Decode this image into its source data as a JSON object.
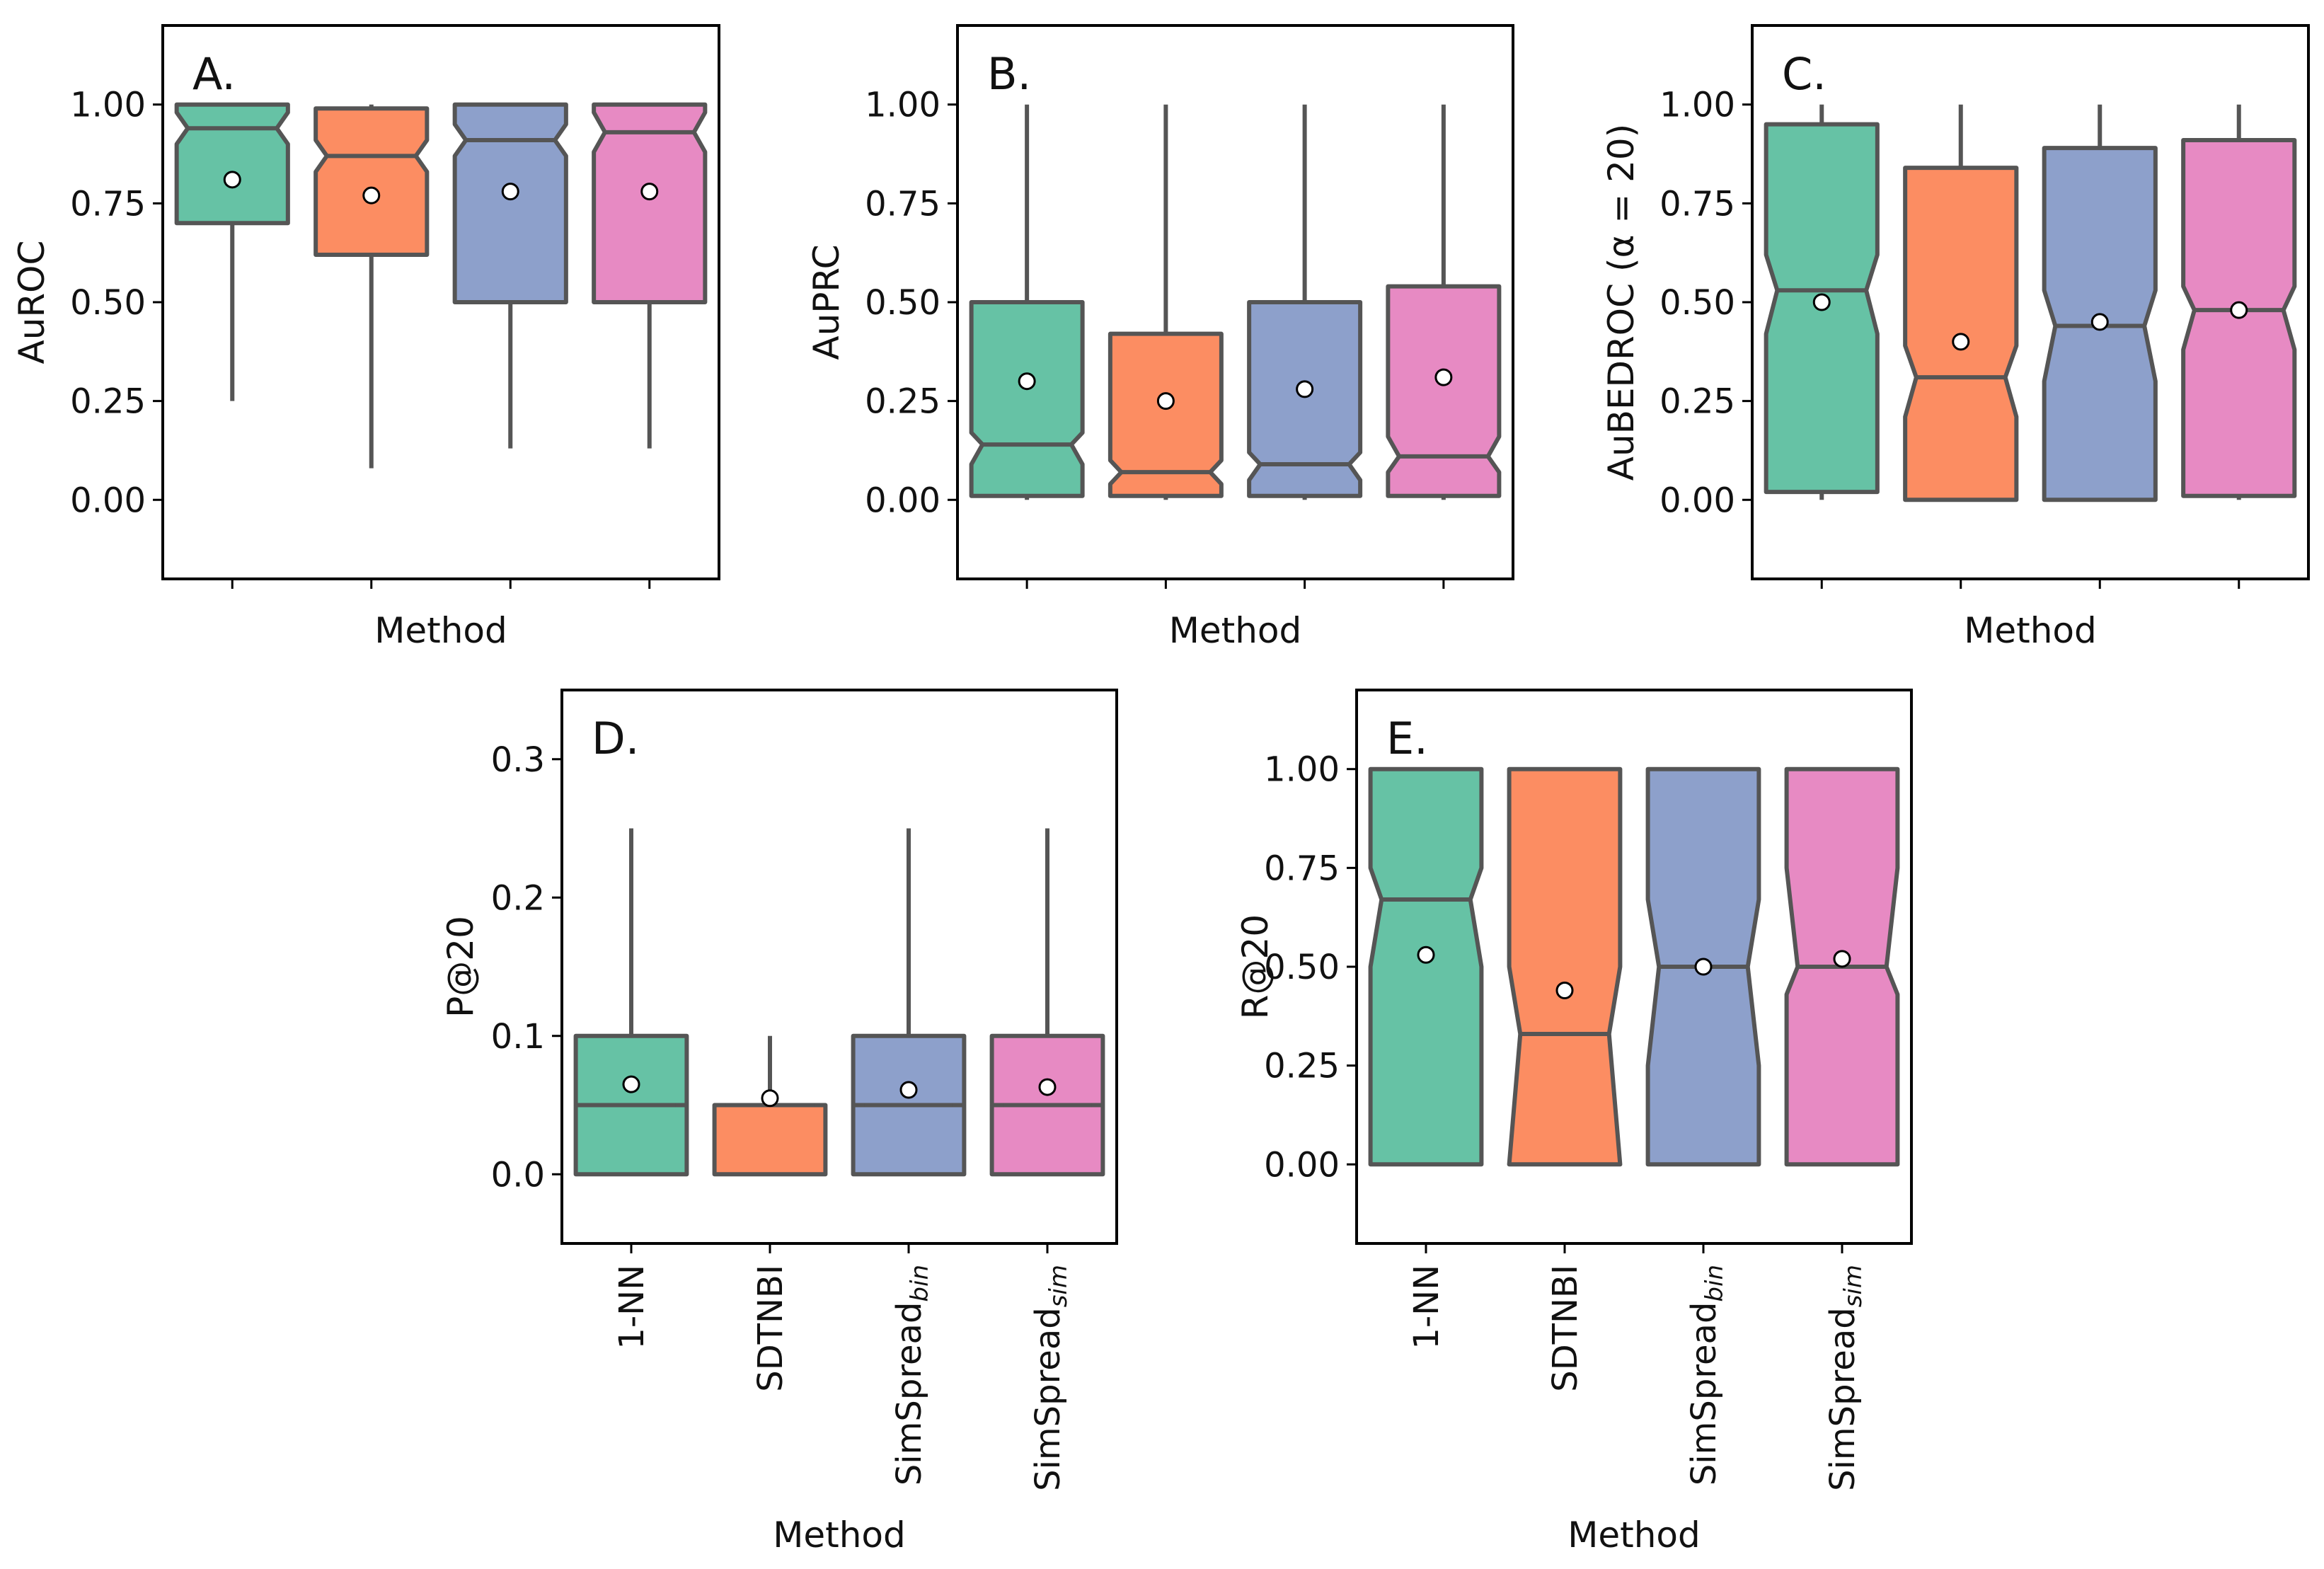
{
  "chart_data": [
    {
      "panel": "A.",
      "type": "boxplot",
      "title": "",
      "xlabel": "Method",
      "ylabel": "AuROC",
      "ylim": [
        -0.2,
        1.2
      ],
      "yticks": [
        0.0,
        0.25,
        0.5,
        0.75,
        1.0
      ],
      "ytick_labels": [
        "0.00",
        "0.25",
        "0.50",
        "0.75",
        "1.00"
      ],
      "show_category_labels": false,
      "categories": [
        "1-NN",
        "SDTNBI",
        "SimSpread_bin",
        "SimSpread_sim"
      ],
      "series": [
        {
          "name": "1-NN",
          "color": "#66c2a5",
          "whislo": 0.25,
          "q1": 0.7,
          "median": 0.94,
          "q3": 1.0,
          "whishi": 1.0,
          "notch_lo": 0.9,
          "notch_hi": 0.98,
          "mean": 0.81
        },
        {
          "name": "SDTNBI",
          "color": "#fc8d62",
          "whislo": 0.08,
          "q1": 0.62,
          "median": 0.87,
          "q3": 0.99,
          "whishi": 1.0,
          "notch_lo": 0.83,
          "notch_hi": 0.91,
          "mean": 0.77
        },
        {
          "name": "SimSpread_bin",
          "color": "#8da0cb",
          "whislo": 0.13,
          "q1": 0.5,
          "median": 0.91,
          "q3": 1.0,
          "whishi": 1.0,
          "notch_lo": 0.87,
          "notch_hi": 0.95,
          "mean": 0.78
        },
        {
          "name": "SimSpread_sim",
          "color": "#e78ac3",
          "whislo": 0.13,
          "q1": 0.5,
          "median": 0.93,
          "q3": 1.0,
          "whishi": 1.0,
          "notch_lo": 0.88,
          "notch_hi": 0.98,
          "mean": 0.78
        }
      ]
    },
    {
      "panel": "B.",
      "type": "boxplot",
      "title": "",
      "xlabel": "Method",
      "ylabel": "AuPRC",
      "ylim": [
        -0.2,
        1.2
      ],
      "yticks": [
        0.0,
        0.25,
        0.5,
        0.75,
        1.0
      ],
      "ytick_labels": [
        "0.00",
        "0.25",
        "0.50",
        "0.75",
        "1.00"
      ],
      "show_category_labels": false,
      "categories": [
        "1-NN",
        "SDTNBI",
        "SimSpread_bin",
        "SimSpread_sim"
      ],
      "series": [
        {
          "name": "1-NN",
          "color": "#66c2a5",
          "whislo": 0.0,
          "q1": 0.01,
          "median": 0.14,
          "q3": 0.5,
          "whishi": 1.0,
          "notch_lo": 0.09,
          "notch_hi": 0.17,
          "mean": 0.3
        },
        {
          "name": "SDTNBI",
          "color": "#fc8d62",
          "whislo": 0.0,
          "q1": 0.01,
          "median": 0.07,
          "q3": 0.42,
          "whishi": 1.0,
          "notch_lo": 0.04,
          "notch_hi": 0.1,
          "mean": 0.25
        },
        {
          "name": "SimSpread_bin",
          "color": "#8da0cb",
          "whislo": 0.0,
          "q1": 0.01,
          "median": 0.09,
          "q3": 0.5,
          "whishi": 1.0,
          "notch_lo": 0.05,
          "notch_hi": 0.12,
          "mean": 0.28
        },
        {
          "name": "SimSpread_sim",
          "color": "#e78ac3",
          "whislo": 0.0,
          "q1": 0.01,
          "median": 0.11,
          "q3": 0.54,
          "whishi": 1.0,
          "notch_lo": 0.07,
          "notch_hi": 0.16,
          "mean": 0.31
        }
      ]
    },
    {
      "panel": "C.",
      "type": "boxplot",
      "title": "",
      "xlabel": "Method",
      "ylabel": "AuBEDROC (α = 20)",
      "ylim": [
        -0.2,
        1.2
      ],
      "yticks": [
        0.0,
        0.25,
        0.5,
        0.75,
        1.0
      ],
      "ytick_labels": [
        "0.00",
        "0.25",
        "0.50",
        "0.75",
        "1.00"
      ],
      "show_category_labels": false,
      "categories": [
        "1-NN",
        "SDTNBI",
        "SimSpread_bin",
        "SimSpread_sim"
      ],
      "series": [
        {
          "name": "1-NN",
          "color": "#66c2a5",
          "whislo": 0.0,
          "q1": 0.02,
          "median": 0.53,
          "q3": 0.95,
          "whishi": 1.0,
          "notch_lo": 0.42,
          "notch_hi": 0.62,
          "mean": 0.5
        },
        {
          "name": "SDTNBI",
          "color": "#fc8d62",
          "whislo": 0.0,
          "q1": 0.0,
          "median": 0.31,
          "q3": 0.84,
          "whishi": 1.0,
          "notch_lo": 0.21,
          "notch_hi": 0.39,
          "mean": 0.4
        },
        {
          "name": "SimSpread_bin",
          "color": "#8da0cb",
          "whislo": 0.0,
          "q1": 0.0,
          "median": 0.44,
          "q3": 0.89,
          "whishi": 1.0,
          "notch_lo": 0.3,
          "notch_hi": 0.53,
          "mean": 0.45
        },
        {
          "name": "SimSpread_sim",
          "color": "#e78ac3",
          "whislo": 0.0,
          "q1": 0.01,
          "median": 0.48,
          "q3": 0.91,
          "whishi": 1.0,
          "notch_lo": 0.38,
          "notch_hi": 0.54,
          "mean": 0.48
        }
      ]
    },
    {
      "panel": "D.",
      "type": "boxplot",
      "title": "",
      "xlabel": "Method",
      "ylabel": "P@20",
      "ylim": [
        -0.05,
        0.35
      ],
      "yticks": [
        0.0,
        0.1,
        0.2,
        0.3
      ],
      "ytick_labels": [
        "0.0",
        "0.1",
        "0.2",
        "0.3"
      ],
      "show_category_labels": true,
      "categories": [
        "1-NN",
        "SDTNBI",
        "SimSpread_bin",
        "SimSpread_sim"
      ],
      "series": [
        {
          "name": "1-NN",
          "color": "#66c2a5",
          "whislo": 0.0,
          "q1": 0.0,
          "median": 0.05,
          "q3": 0.1,
          "whishi": 0.25,
          "notch_lo": 0.05,
          "notch_hi": 0.05,
          "mean": 0.065
        },
        {
          "name": "SDTNBI",
          "color": "#fc8d62",
          "whislo": 0.0,
          "q1": 0.0,
          "median": 0.05,
          "q3": 0.05,
          "whishi": 0.1,
          "notch_lo": 0.05,
          "notch_hi": 0.05,
          "mean": 0.055
        },
        {
          "name": "SimSpread_bin",
          "color": "#8da0cb",
          "whislo": 0.0,
          "q1": 0.0,
          "median": 0.05,
          "q3": 0.1,
          "whishi": 0.25,
          "notch_lo": 0.05,
          "notch_hi": 0.05,
          "mean": 0.061
        },
        {
          "name": "SimSpread_sim",
          "color": "#e78ac3",
          "whislo": 0.0,
          "q1": 0.0,
          "median": 0.05,
          "q3": 0.1,
          "whishi": 0.25,
          "notch_lo": 0.05,
          "notch_hi": 0.05,
          "mean": 0.063
        }
      ]
    },
    {
      "panel": "E.",
      "type": "boxplot",
      "title": "",
      "xlabel": "Method",
      "ylabel": "R@20",
      "ylim": [
        -0.2,
        1.2
      ],
      "yticks": [
        0.0,
        0.25,
        0.5,
        0.75,
        1.0
      ],
      "ytick_labels": [
        "0.00",
        "0.25",
        "0.50",
        "0.75",
        "1.00"
      ],
      "show_category_labels": true,
      "categories": [
        "1-NN",
        "SDTNBI",
        "SimSpread_bin",
        "SimSpread_sim"
      ],
      "series": [
        {
          "name": "1-NN",
          "color": "#66c2a5",
          "whislo": 0.0,
          "q1": 0.0,
          "median": 0.67,
          "q3": 1.0,
          "whishi": 1.0,
          "notch_lo": 0.5,
          "notch_hi": 0.75,
          "mean": 0.53
        },
        {
          "name": "SDTNBI",
          "color": "#fc8d62",
          "whislo": 0.0,
          "q1": 0.0,
          "median": 0.33,
          "q3": 1.0,
          "whishi": 1.0,
          "notch_lo": 0.0,
          "notch_hi": 0.5,
          "mean": 0.44
        },
        {
          "name": "SimSpread_bin",
          "color": "#8da0cb",
          "whislo": 0.0,
          "q1": 0.0,
          "median": 0.5,
          "q3": 1.0,
          "whishi": 1.0,
          "notch_lo": 0.25,
          "notch_hi": 0.67,
          "mean": 0.5
        },
        {
          "name": "SimSpread_sim",
          "color": "#e78ac3",
          "whislo": 0.0,
          "q1": 0.0,
          "median": 0.5,
          "q3": 1.0,
          "whishi": 1.0,
          "notch_lo": 0.43,
          "notch_hi": 0.75,
          "mean": 0.52
        }
      ]
    }
  ],
  "category_display": [
    {
      "base": "1-NN",
      "sub": ""
    },
    {
      "base": "SDTNBI",
      "sub": ""
    },
    {
      "base": "SimSpread",
      "sub": "bin"
    },
    {
      "base": "SimSpread",
      "sub": "sim"
    }
  ],
  "colors": {
    "edge": "#555555",
    "axis": "#000000",
    "mean_fill": "#ffffff"
  }
}
